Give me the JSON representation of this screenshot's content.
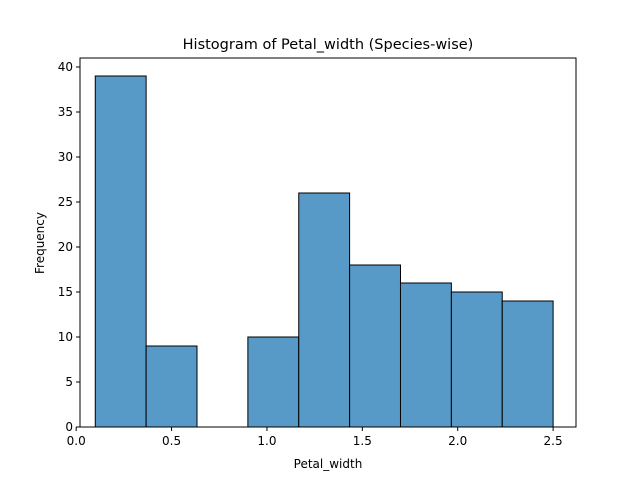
{
  "chart_data": {
    "type": "bar",
    "title": "Histogram of Petal_width (Species-wise)",
    "xlabel": "Petal_width",
    "ylabel": "Frequency",
    "xlim": [
      0.02,
      2.62
    ],
    "ylim": [
      0,
      41
    ],
    "xticks": [
      0.0,
      0.5,
      1.0,
      1.5,
      2.0,
      2.5
    ],
    "xtick_labels": [
      "0.0",
      "0.5",
      "1.0",
      "1.5",
      "2.0",
      "2.5"
    ],
    "yticks": [
      0,
      5,
      10,
      15,
      20,
      25,
      30,
      35,
      40
    ],
    "ytick_labels": [
      "0",
      "5",
      "10",
      "15",
      "20",
      "25",
      "30",
      "35",
      "40"
    ],
    "bin_edges": [
      0.1,
      0.3667,
      0.6333,
      0.9,
      1.1667,
      1.4333,
      1.7,
      1.9667,
      2.2333,
      2.5
    ],
    "values": [
      39,
      9,
      0,
      10,
      26,
      18,
      16,
      15,
      14
    ],
    "grid": false,
    "colors": {
      "bar_fill": "#5799c7",
      "bar_edge": "#000000"
    }
  }
}
